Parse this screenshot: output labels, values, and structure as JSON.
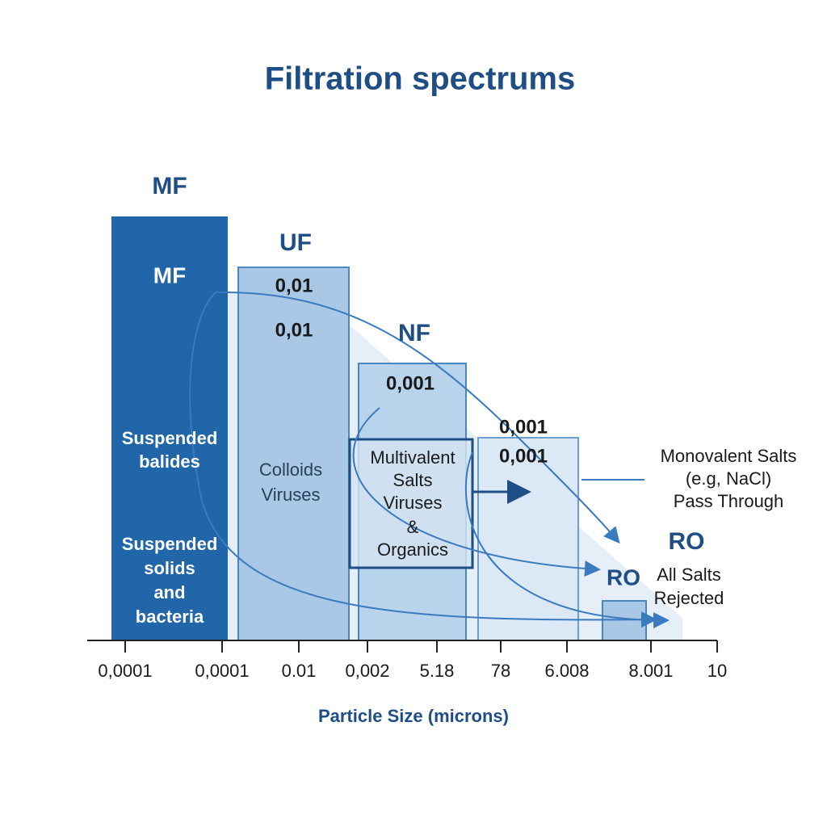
{
  "title": "Filtration spectrums",
  "x_axis": {
    "label": "Particle Size (microns)",
    "ticks": [
      "0,0001",
      "0,0001",
      "0.01",
      "0,002",
      "5.18",
      "78",
      "6.008",
      "8.001",
      "10"
    ]
  },
  "columns": [
    {
      "label": "MF",
      "inner_label": "MF",
      "texts": [
        "Suspended",
        "balides"
      ],
      "texts2": [
        "Suspended",
        "solids",
        "and",
        "bacteria"
      ]
    },
    {
      "label": "UF",
      "inner_labels": [
        "0,01",
        "0,01"
      ],
      "texts": [
        "Colloids",
        "Viruses"
      ]
    },
    {
      "label": "NF",
      "inner_labels": [
        "0,001"
      ],
      "texts": [
        "Multivalent",
        "Salts",
        "Viruses",
        "&",
        "Organics"
      ]
    },
    {
      "inner_labels": [
        "0,001",
        "0,001"
      ]
    },
    {
      "label": "RO"
    }
  ],
  "annotations": {
    "ro_label": "RO",
    "rejected": [
      "All Salts",
      "Rejected"
    ],
    "monovalent": [
      "Monovalent Salts",
      "(e.g, NaCl)",
      "Pass Through"
    ]
  }
}
